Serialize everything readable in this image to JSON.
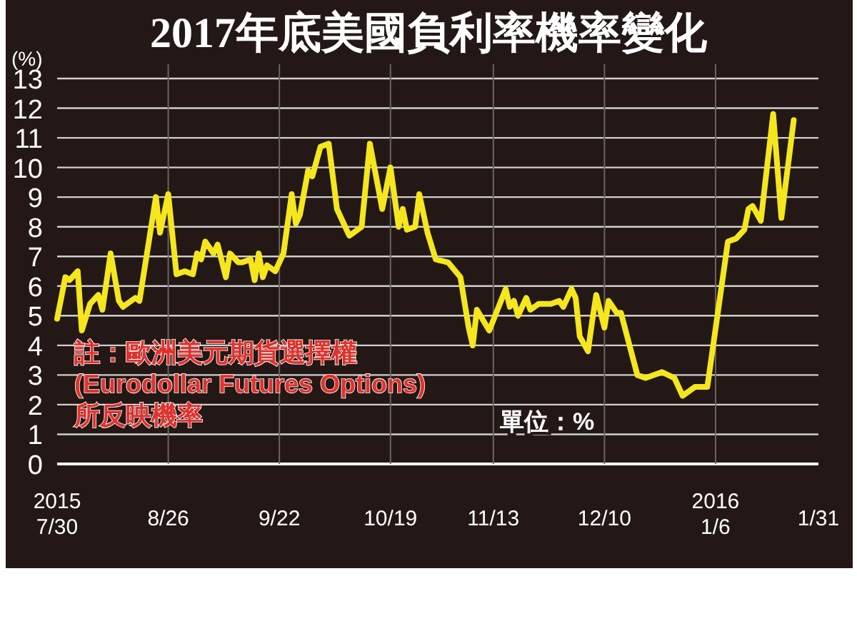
{
  "chart_data": {
    "type": "line",
    "title": "2017年底美國負利率機率變化",
    "ylabel": "(%)",
    "annotations": [
      "註：歐洲美元期貨選擇權\n(Eurodollar Futures Options)\n所反映機率",
      "單位：%"
    ],
    "x": [
      "2015-07-30",
      "2015-08-01",
      "2015-08-02",
      "2015-08-04",
      "2015-08-05",
      "2015-08-07",
      "2015-08-09",
      "2015-08-10",
      "2015-08-12",
      "2015-08-14",
      "2015-08-15",
      "2015-08-18",
      "2015-08-19",
      "2015-08-23",
      "2015-08-24",
      "2015-08-26",
      "2015-08-28",
      "2015-08-30",
      "2015-09-01",
      "2015-09-02",
      "2015-09-03",
      "2015-09-04",
      "2015-09-06",
      "2015-09-07",
      "2015-09-09",
      "2015-09-10",
      "2015-09-12",
      "2015-09-13",
      "2015-09-15",
      "2015-09-16",
      "2015-09-17",
      "2015-09-18",
      "2015-09-19",
      "2015-09-21",
      "2015-09-23",
      "2015-09-25",
      "2015-09-26",
      "2015-09-27",
      "2015-09-29",
      "2015-09-30",
      "2015-10-02",
      "2015-10-04",
      "2015-10-06",
      "2015-10-07",
      "2015-10-09",
      "2015-10-12",
      "2015-10-14",
      "2015-10-17",
      "2015-10-19",
      "2015-10-21",
      "2015-10-22",
      "2015-10-23",
      "2015-10-25",
      "2015-10-26",
      "2015-10-28",
      "2015-10-30",
      "2015-11-02",
      "2015-11-05",
      "2015-11-07",
      "2015-11-08",
      "2015-11-09",
      "2015-11-12",
      "2015-11-16",
      "2015-11-17",
      "2015-11-18",
      "2015-11-19",
      "2015-11-21",
      "2015-11-22",
      "2015-11-24",
      "2015-11-27",
      "2015-11-29",
      "2015-11-30",
      "2015-12-02",
      "2015-12-03",
      "2015-12-04",
      "2015-12-06",
      "2015-12-07",
      "2015-12-08",
      "2015-12-10",
      "2015-12-11",
      "2015-12-13",
      "2015-12-14",
      "2015-12-18",
      "2015-12-20",
      "2015-12-24",
      "2015-12-27",
      "2015-12-29",
      "2016-01-01",
      "2016-01-04",
      "2016-01-09",
      "2016-01-11",
      "2016-01-13",
      "2016-01-14",
      "2016-01-15",
      "2016-01-17",
      "2016-01-20",
      "2016-01-22",
      "2016-01-25"
    ],
    "series": [
      {
        "color": "#f5e61e",
        "values": [
          4.9,
          6.3,
          6.2,
          6.5,
          4.5,
          5.4,
          5.7,
          5.2,
          7.1,
          5.5,
          5.3,
          5.6,
          5.5,
          9.0,
          7.8,
          9.1,
          6.4,
          6.5,
          6.4,
          7.1,
          6.9,
          7.5,
          7.1,
          7.4,
          6.3,
          7.1,
          6.8,
          6.8,
          6.9,
          6.2,
          7.1,
          6.3,
          6.7,
          6.5,
          7.1,
          9.1,
          8.1,
          8.4,
          9.9,
          9.7,
          10.7,
          10.8,
          8.6,
          8.3,
          7.7,
          8.0,
          10.8,
          8.6,
          10.0,
          8.0,
          8.6,
          7.9,
          8.0,
          9.1,
          7.8,
          6.9,
          6.8,
          6.3,
          4.6,
          4.0,
          5.2,
          4.5,
          5.9,
          5.3,
          5.5,
          5.0,
          5.6,
          5.2,
          5.4,
          5.4,
          5.5,
          5.3,
          5.9,
          5.6,
          4.3,
          3.8,
          4.8,
          5.7,
          4.6,
          5.5,
          5.1,
          5.1,
          3.0,
          2.9,
          3.1,
          2.9,
          2.3,
          2.6,
          2.6,
          7.5,
          7.6,
          7.9,
          8.6,
          8.7,
          8.2,
          11.8,
          8.3,
          11.6
        ]
      }
    ],
    "xlim": [
      "2015-07-30",
      "2016-01-31"
    ],
    "xticks": [
      {
        "value": "2015-07-30",
        "label": "2015\n7/30"
      },
      {
        "value": "2015-08-26",
        "label": "8/26"
      },
      {
        "value": "2015-09-22",
        "label": "9/22"
      },
      {
        "value": "2015-10-19",
        "label": "10/19"
      },
      {
        "value": "2015-11-13",
        "label": "11/13"
      },
      {
        "value": "2015-12-10",
        "label": "12/10"
      },
      {
        "value": "2016-01-06",
        "label": "2016\n1/6"
      },
      {
        "value": "2016-01-31",
        "label": "1/31"
      }
    ],
    "ylim": [
      0,
      13
    ],
    "yticks": [
      0,
      1,
      2,
      3,
      4,
      5,
      6,
      7,
      8,
      9,
      10,
      11,
      12,
      13
    ],
    "grid": true,
    "marker": "none",
    "line_style": "solid"
  }
}
